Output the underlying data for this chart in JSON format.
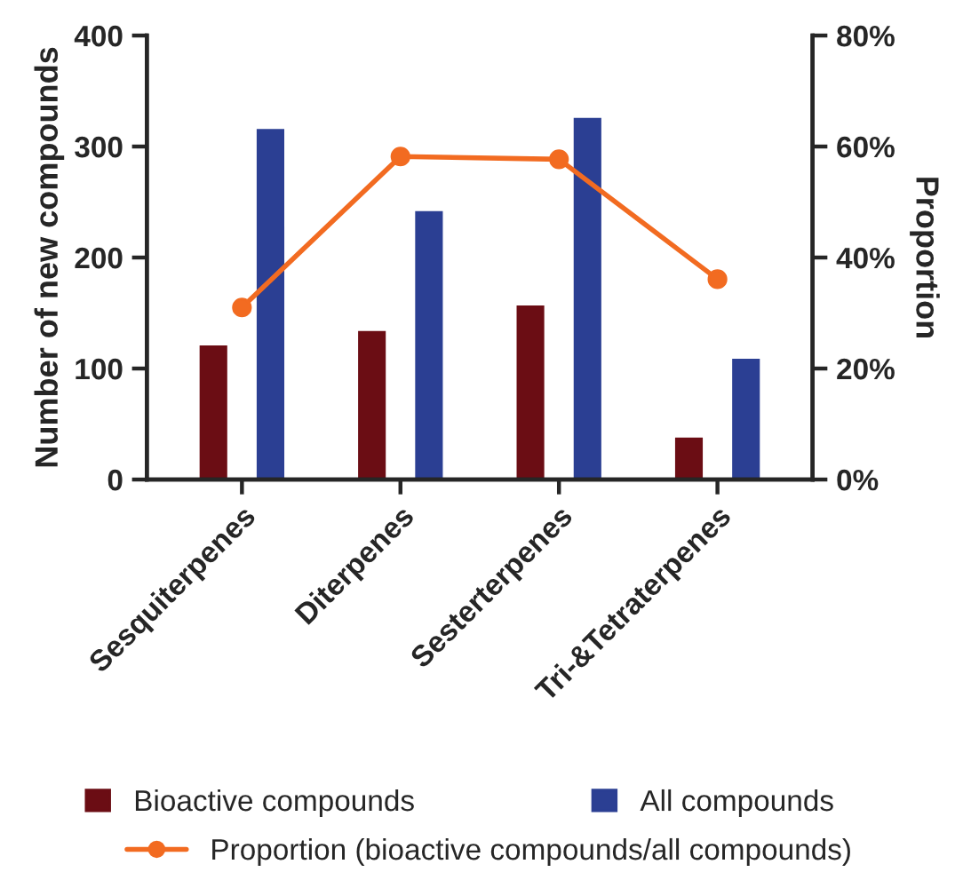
{
  "chart_data": {
    "type": "bar",
    "ylabel": "Number of new compounds",
    "y2label": "Proportion",
    "categories": [
      "Sesquiterpenes",
      "Diterpenes",
      "Sesterterpenes",
      "Tri-&Tetraterpenes"
    ],
    "series": [
      {
        "name": "Bioactive compounds",
        "color": "#6b0d14",
        "values": [
          122,
          135,
          158,
          39
        ]
      },
      {
        "name": "All compounds",
        "color": "#2b3f93",
        "values": [
          317,
          243,
          327,
          110
        ]
      },
      {
        "name": "Proportion (bioactive compounds/all compounds)",
        "type": "line",
        "axis": "y2",
        "color": "#f26b21",
        "marker": "circle",
        "values": [
          31,
          58.2,
          57.7,
          36.1
        ]
      }
    ],
    "ylim": [
      0,
      400
    ],
    "yticks": [
      0,
      100,
      200,
      300,
      400
    ],
    "y2lim": [
      0,
      80
    ],
    "y2ticks": [
      {
        "value": 0,
        "label": "0%"
      },
      {
        "value": 20,
        "label": "20%"
      },
      {
        "value": 40,
        "label": "40%"
      },
      {
        "value": 60,
        "label": "60%"
      },
      {
        "value": 80,
        "label": "80%"
      }
    ],
    "grid": false,
    "legend": "bottom"
  }
}
